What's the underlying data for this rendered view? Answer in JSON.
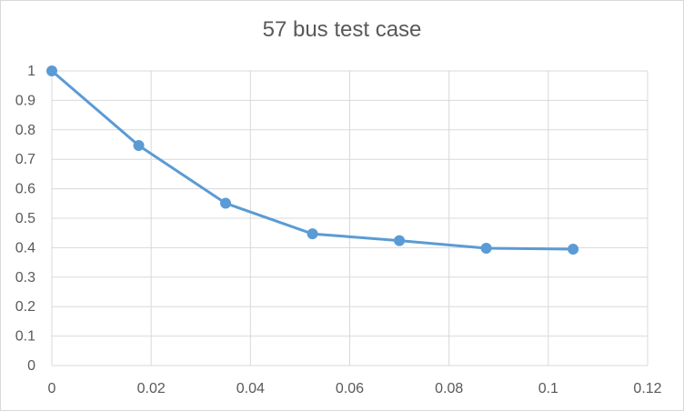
{
  "chart_data": {
    "type": "line",
    "title": "57 bus test case",
    "xlabel": "",
    "ylabel": "",
    "xlim": [
      0,
      0.12
    ],
    "ylim": [
      0,
      1
    ],
    "x_ticks": [
      0,
      0.02,
      0.04,
      0.06,
      0.08,
      0.1,
      0.12
    ],
    "x_tick_labels": [
      "0",
      "0.02",
      "0.04",
      "0.06",
      "0.08",
      "0.1",
      "0.12"
    ],
    "y_ticks": [
      0,
      0.1,
      0.2,
      0.3,
      0.4,
      0.5,
      0.6,
      0.7,
      0.8,
      0.9,
      1
    ],
    "y_tick_labels": [
      "0",
      "0.1",
      "0.2",
      "0.3",
      "0.4",
      "0.5",
      "0.6",
      "0.7",
      "0.8",
      "0.9",
      "1"
    ],
    "grid": true,
    "legend": "none",
    "series": [
      {
        "color": "#5b9bd5",
        "marker": "circle",
        "x": [
          0,
          0.0175,
          0.035,
          0.0525,
          0.07,
          0.0875,
          0.105
        ],
        "y": [
          1.0,
          0.747,
          0.551,
          0.447,
          0.424,
          0.398,
          0.395
        ]
      }
    ]
  }
}
